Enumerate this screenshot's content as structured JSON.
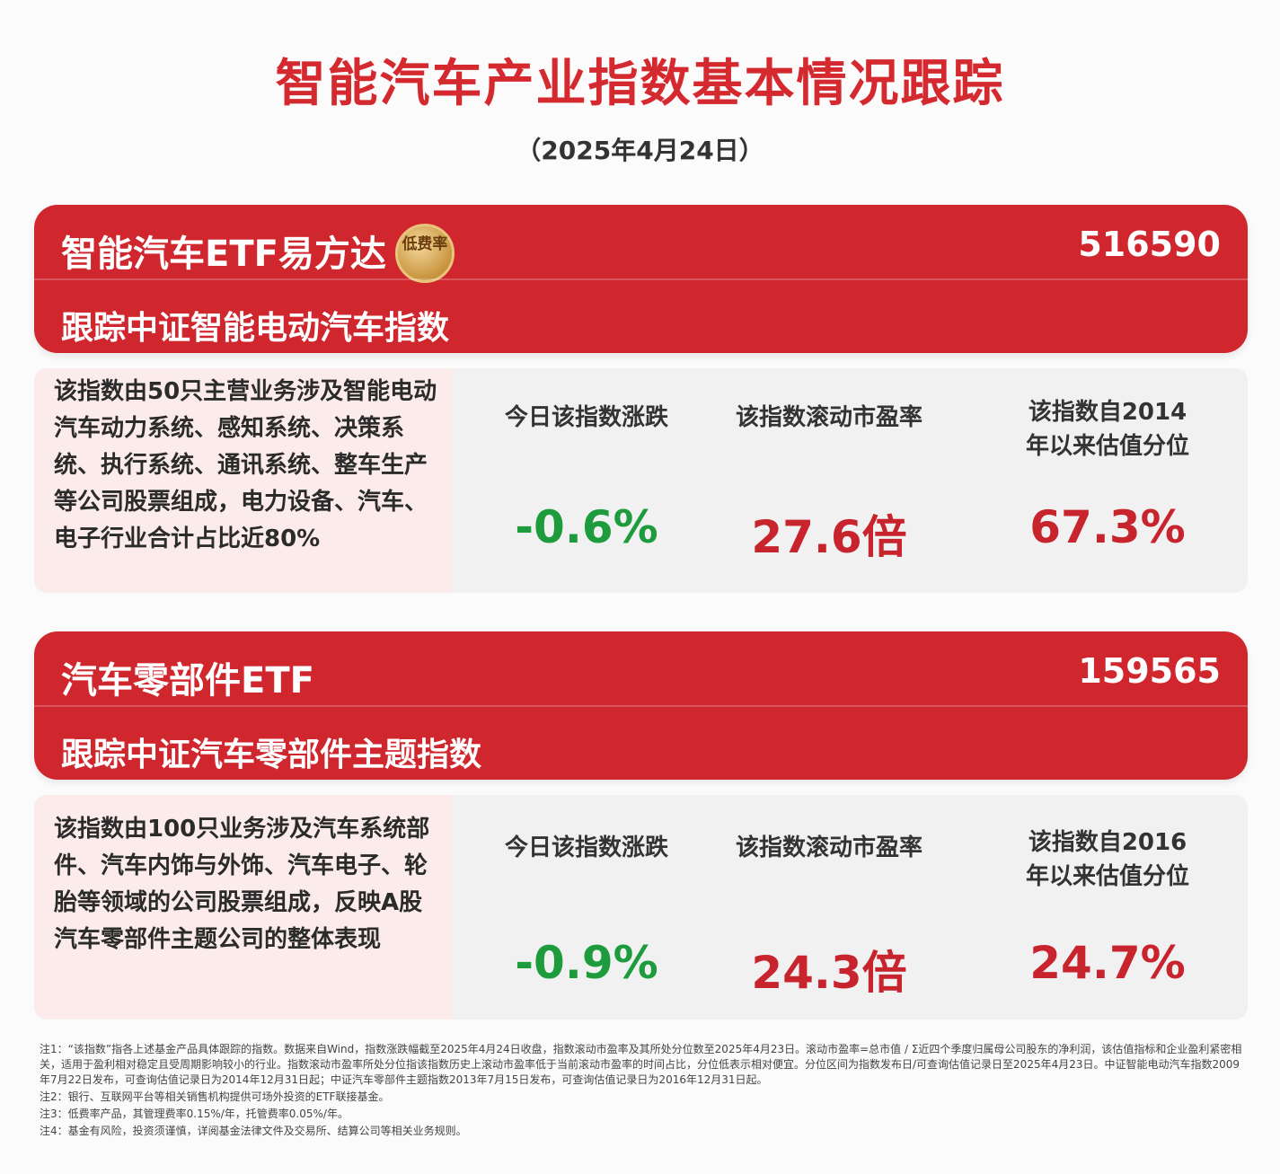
{
  "title": "智能汽车产业指数基本情况跟踪",
  "date": "（2025年4月24日）",
  "funds": [
    {
      "name": "智能汽车ETF易方达",
      "badge": "低费率",
      "code": "516590",
      "tracks": "跟踪中证智能电动汽车指数",
      "description": "该指数由50只主营业务涉及智能电动汽车动力系统、感知系统、决策系统、执行系统、通讯系统、整车生产等公司股票组成，电力设备、汽车、电子行业合计占比近80%",
      "metrics": [
        {
          "label": "今日该指数涨跌",
          "value": "-0.6%",
          "color": "#1e9b3c"
        },
        {
          "label": "该指数滚动市盈率",
          "value": "27.6倍",
          "color": "#c8242d"
        },
        {
          "label": "该指数自2014年以来估值分位",
          "value": "67.3%",
          "color": "#c8242d"
        }
      ]
    },
    {
      "name": "汽车零部件ETF",
      "badge": "",
      "code": "159565",
      "tracks": "跟踪中证汽车零部件主题指数",
      "description": "该指数由100只业务涉及汽车系统部件、汽车内饰与外饰、汽车电子、轮胎等领域的公司股票组成，反映A股汽车零部件主题公司的整体表现",
      "metrics": [
        {
          "label": "今日该指数涨跌",
          "value": "-0.9%",
          "color": "#1e9b3c"
        },
        {
          "label": "该指数滚动市盈率",
          "value": "24.3倍",
          "color": "#c8242d"
        },
        {
          "label": "该指数自2016年以来估值分位",
          "value": "24.7%",
          "color": "#c8242d"
        }
      ]
    }
  ],
  "notes": [
    "注1：“该指数”指各上述基金产品具体跟踪的指数。数据来自Wind，指数涨跌幅截至2025年4月24日收盘，指数滚动市盈率及其所处分位数至2025年4月23日。滚动市盈率=总市值 / Σ近四个季度归属母公司股东的净利润，该估值指标和企业盈利紧密相关，适用于盈利相对稳定且受周期影响较小的行业。指数滚动市盈率所处分位指该指数历史上滚动市盈率低于当前滚动市盈率的时间占比，分位低表示相对便宜。分位区间为指数发布日/可查询估值记录日至2025年4月23日。中证智能电动汽车指数2009年7月22日发布，可查询估值记录日为2014年12月31日起；中证汽车零部件主题指数2013年7月15日发布，可查询估值记录日为2016年12月31日起。",
    "注2：银行、互联网平台等相关销售机构提供可场外投资的ETF联接基金。",
    "注3：低费率产品，其管理费率0.15%/年，托管费率0.05%/年。",
    "注4：基金有风险，投资须谨慎，详阅基金法律文件及交易所、结算公司等相关业务规则。"
  ]
}
